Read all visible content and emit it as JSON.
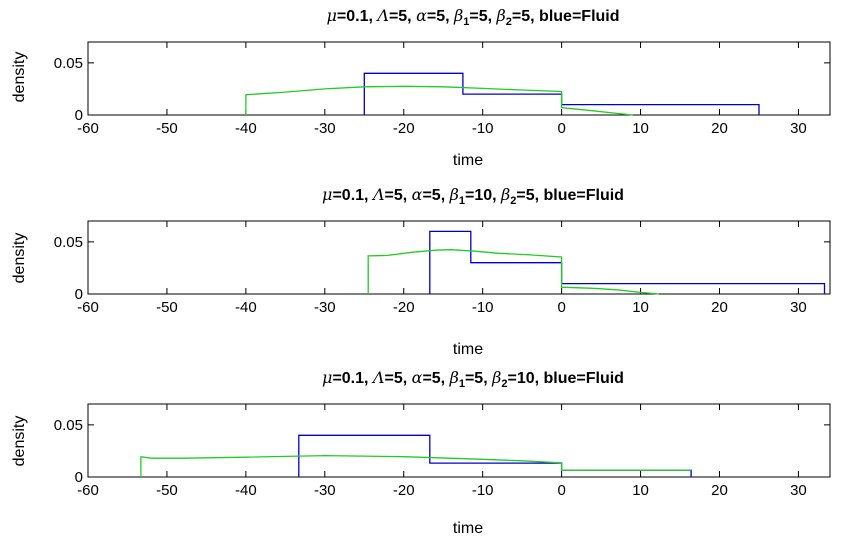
{
  "chart_data": [
    {
      "type": "line",
      "title_parts": {
        "mu": "μ",
        "mu_val": "=0.1, ",
        "Lambda": "Λ",
        "Lambda_val": "=5, ",
        "alpha": "α",
        "alpha_val": "=5, ",
        "beta": "β",
        "sub1": "1",
        "beta1_val": "=5, ",
        "sub2": "2",
        "beta2_val": "=5, blue=Fluid"
      },
      "xlabel": "time",
      "ylabel": "density",
      "xlim": [
        -60,
        34
      ],
      "ylim": [
        0,
        0.07
      ],
      "xticks": [
        -60,
        -50,
        -40,
        -30,
        -20,
        -10,
        0,
        10,
        20,
        30
      ],
      "yticks": [
        0,
        0.05
      ],
      "ytick_labels": [
        "0",
        "0.05"
      ],
      "series": [
        {
          "color": "#0000cc",
          "points": [
            [
              -25,
              0
            ],
            [
              -25,
              0.04
            ],
            [
              -12.5,
              0.04
            ],
            [
              -12.5,
              0.02
            ],
            [
              0,
              0.02
            ],
            [
              0,
              0.01
            ],
            [
              25,
              0.01
            ],
            [
              25,
              0
            ]
          ]
        },
        {
          "color": "#22cc22",
          "points": [
            [
              -40,
              0
            ],
            [
              -40,
              0.0195
            ],
            [
              -35,
              0.022
            ],
            [
              -30,
              0.025
            ],
            [
              -25,
              0.027
            ],
            [
              -20,
              0.0275
            ],
            [
              -15,
              0.027
            ],
            [
              -10,
              0.0255
            ],
            [
              -5,
              0.024
            ],
            [
              0,
              0.0225
            ],
            [
              0,
              0.007
            ],
            [
              4,
              0.004
            ],
            [
              7,
              0.0015
            ],
            [
              9,
              0
            ]
          ]
        }
      ]
    },
    {
      "type": "line",
      "title_parts": {
        "mu": "μ",
        "mu_val": "=0.1, ",
        "Lambda": "Λ",
        "Lambda_val": "=5, ",
        "alpha": "α",
        "alpha_val": "=5, ",
        "beta": "β",
        "sub1": "1",
        "beta1_val": "=10, ",
        "sub2": "2",
        "beta2_val": "=5, blue=Fluid"
      },
      "xlabel": "time",
      "ylabel": "density",
      "xlim": [
        -60,
        34
      ],
      "ylim": [
        0,
        0.07
      ],
      "xticks": [
        -60,
        -50,
        -40,
        -30,
        -20,
        -10,
        0,
        10,
        20,
        30
      ],
      "yticks": [
        0,
        0.05
      ],
      "ytick_labels": [
        "0",
        "0.05"
      ],
      "series": [
        {
          "color": "#0000cc",
          "points": [
            [
              -16.7,
              0
            ],
            [
              -16.7,
              0.06
            ],
            [
              -11.5,
              0.06
            ],
            [
              -11.5,
              0.03
            ],
            [
              0,
              0.03
            ],
            [
              0,
              0.01
            ],
            [
              33.3,
              0.01
            ],
            [
              33.3,
              0
            ]
          ]
        },
        {
          "color": "#22cc22",
          "points": [
            [
              -24.5,
              0
            ],
            [
              -24.5,
              0.0365
            ],
            [
              -22,
              0.037
            ],
            [
              -19,
              0.04
            ],
            [
              -16,
              0.042
            ],
            [
              -14,
              0.0425
            ],
            [
              -11,
              0.041
            ],
            [
              -8,
              0.039
            ],
            [
              -4,
              0.0375
            ],
            [
              0,
              0.0355
            ],
            [
              0,
              0.0065
            ],
            [
              4,
              0.0055
            ],
            [
              7,
              0.004
            ],
            [
              10,
              0.0015
            ],
            [
              12.3,
              0
            ]
          ]
        }
      ]
    },
    {
      "type": "line",
      "title_parts": {
        "mu": "μ",
        "mu_val": "=0.1, ",
        "Lambda": "Λ",
        "Lambda_val": "=5, ",
        "alpha": "α",
        "alpha_val": "=5, ",
        "beta": "β",
        "sub1": "1",
        "beta1_val": "=5, ",
        "sub2": "2",
        "beta2_val": "=10, blue=Fluid"
      },
      "xlabel": "time",
      "ylabel": "density",
      "xlim": [
        -60,
        34
      ],
      "ylim": [
        0,
        0.07
      ],
      "xticks": [
        -60,
        -50,
        -40,
        -30,
        -20,
        -10,
        0,
        10,
        20,
        30
      ],
      "yticks": [
        0,
        0.05
      ],
      "ytick_labels": [
        "0",
        "0.05"
      ],
      "series": [
        {
          "color": "#0000cc",
          "points": [
            [
              -33.3,
              0
            ],
            [
              -33.3,
              0.04
            ],
            [
              -16.7,
              0.04
            ],
            [
              -16.7,
              0.0133
            ],
            [
              0,
              0.0133
            ],
            [
              0,
              0.0066
            ],
            [
              16.4,
              0.0066
            ],
            [
              16.4,
              0
            ]
          ]
        },
        {
          "color": "#22cc22",
          "points": [
            [
              -53.3,
              0
            ],
            [
              -53.3,
              0.0195
            ],
            [
              -52,
              0.018
            ],
            [
              -48,
              0.018
            ],
            [
              -40,
              0.019
            ],
            [
              -30,
              0.0205
            ],
            [
              -20,
              0.0195
            ],
            [
              -10,
              0.017
            ],
            [
              -5,
              0.0155
            ],
            [
              0,
              0.0135
            ],
            [
              0,
              0.0066
            ],
            [
              8,
              0.0066
            ],
            [
              16.4,
              0.0066
            ]
          ]
        }
      ]
    }
  ]
}
